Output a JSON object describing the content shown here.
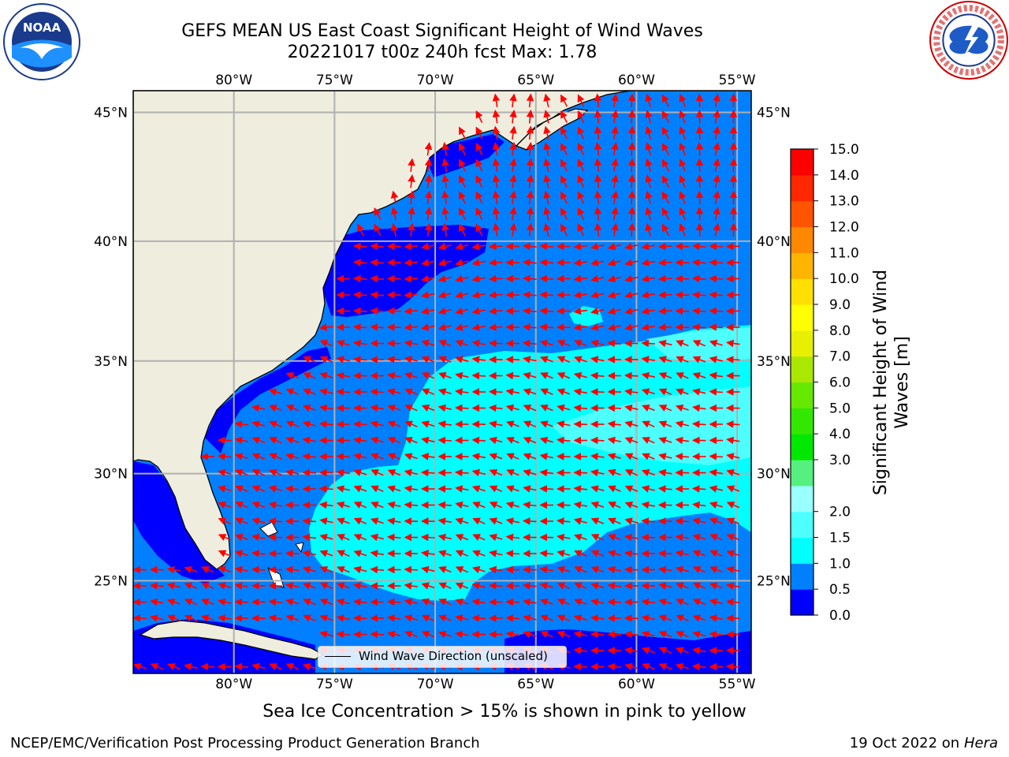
{
  "header": {
    "title_line1": "GEFS MEAN US East Coast Significant Height of Wind Waves",
    "title_line2": "20221017 t00z 240h fcst   Max: 1.78"
  },
  "map": {
    "projection_extent": {
      "lon_min": -85,
      "lon_max": -54.3,
      "lat_min": 20.5,
      "lat_max": 45.8
    },
    "grid_lons": [
      -80,
      -75,
      -70,
      -65,
      -60,
      -55
    ],
    "grid_lats": [
      25,
      30,
      35,
      40,
      45
    ],
    "lon_tick_labels": [
      "80°W",
      "75°W",
      "70°W",
      "65°W",
      "60°W",
      "55°W"
    ],
    "lat_tick_labels": [
      "25°N",
      "30°N",
      "35°N",
      "40°N",
      "45°N"
    ],
    "land_color": "#efedde",
    "grid_color": "#b0b0b0",
    "arrow_color": "#ff0000",
    "legend_label": "Wind Wave Direction (unscaled)",
    "icons": {
      "left_logo": "noaa-logo-icon",
      "right_logo": "national-weather-service-logo-icon"
    }
  },
  "colorbar": {
    "label": "Significant Height of Wind Waves [m]",
    "label_line1": "Significant Height of Wind",
    "label_line2": "Waves [m]",
    "levels": [
      0.0,
      0.5,
      1.0,
      1.5,
      2.0,
      2.5,
      3.0,
      4.0,
      5.0,
      6.0,
      7.0,
      8.0,
      9.0,
      10.0,
      11.0,
      12.0,
      13.0,
      14.0,
      15.0
    ],
    "tick_labels": [
      "0.0",
      "0.5",
      "1.0",
      "1.5",
      "2.0",
      "3.0",
      "4.0",
      "5.0",
      "6.0",
      "7.0",
      "8.0",
      "9.0",
      "10.0",
      "11.0",
      "12.0",
      "13.0",
      "14.0",
      "15.0"
    ],
    "colors": [
      "#0000ff",
      "#0080ff",
      "#00ffff",
      "#4dffff",
      "#99ffff",
      "#55f080",
      "#00e800",
      "#33e800",
      "#66e800",
      "#aae800",
      "#e6f000",
      "#ffff00",
      "#ffe000",
      "#ffb400",
      "#ff8800",
      "#ff5500",
      "#ff2800",
      "#ff0000"
    ]
  },
  "subtitle": "Sea Ice Concentration > 15% is shown in pink to yellow",
  "footer": {
    "left": "NCEP/EMC/Verification Post Processing Product Generation Branch",
    "right_prefix": "19 Oct 2022 on ",
    "right_machine": "Hera"
  }
}
